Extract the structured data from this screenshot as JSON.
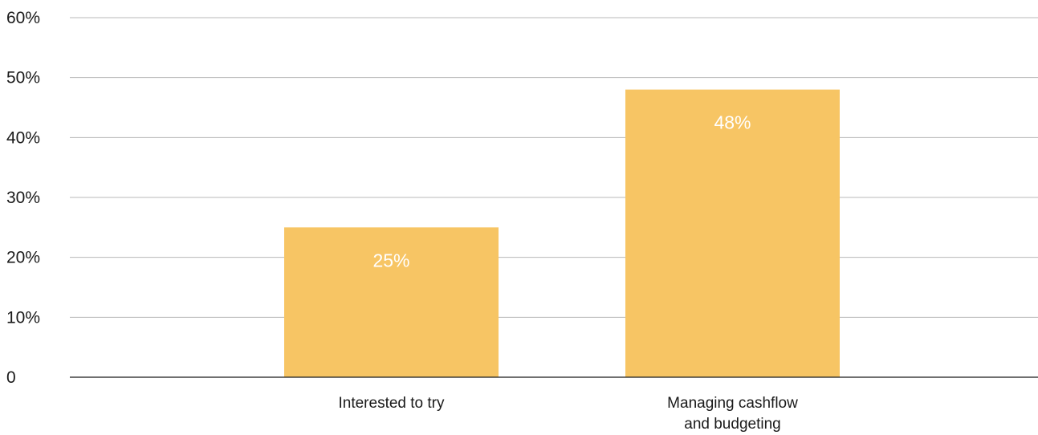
{
  "chart_data": {
    "type": "bar",
    "categories": [
      [
        "Interested to try"
      ],
      [
        "Managing cashflow",
        "and budgeting"
      ]
    ],
    "values": [
      25,
      48
    ],
    "data_labels": [
      "25%",
      "48%"
    ],
    "ylim": [
      0,
      60
    ],
    "yticks": [
      0,
      10,
      20,
      30,
      40,
      50,
      60
    ],
    "ytick_labels": [
      "0",
      "10%",
      "20%",
      "30%",
      "40%",
      "50%",
      "60%"
    ],
    "grid": true,
    "bar_color": "#f7c564",
    "data_label_color": "#ffffff",
    "grid_color": "#b8b8b8",
    "axis_color": "#1a1a1a"
  }
}
